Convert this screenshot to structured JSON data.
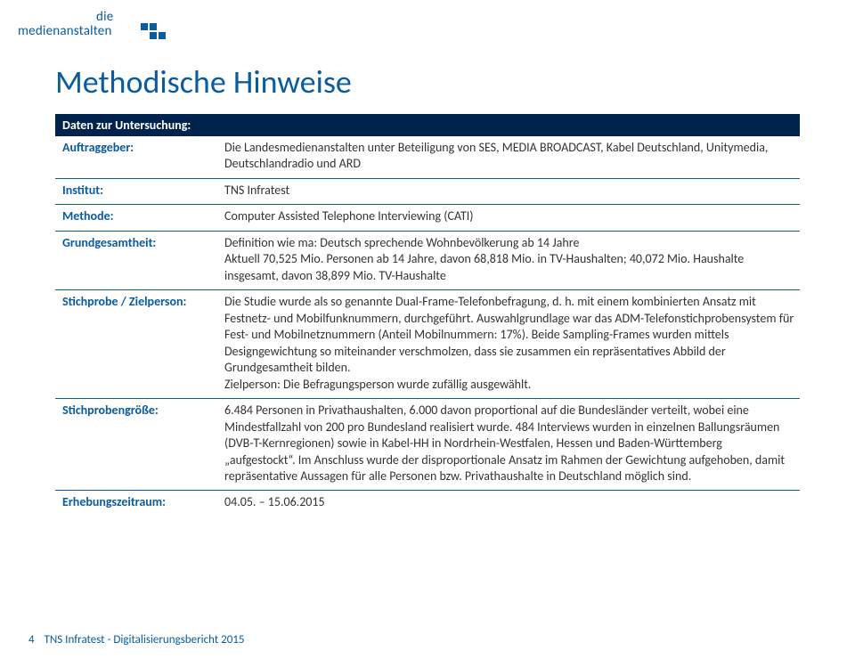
{
  "logo": {
    "line1": "die",
    "line2": "medienanstalten"
  },
  "title": "Methodische Hinweise",
  "colors": {
    "brand": "#0a5ca0",
    "tableHeaderBg": "#00234e",
    "tableHeaderFg": "#ffffff",
    "bodyText": "#333333",
    "ruleColor": "#0a5ca0",
    "pageBg": "#ffffff"
  },
  "table": {
    "header": "Daten zur Untersuchung:",
    "rows": [
      {
        "label": "Auftraggeber:",
        "value": "Die Landesmedienanstalten unter Beteiligung von SES, MEDIA BROADCAST, Kabel Deutschland, Unitymedia, Deutschlandradio und ARD"
      },
      {
        "label": "Institut:",
        "value": "TNS Infratest"
      },
      {
        "label": "Methode:",
        "value": "Computer Assisted Telephone Interviewing (CATI)"
      },
      {
        "label": "Grundgesamtheit:",
        "value": "Definition wie ma: Deutsch sprechende Wohnbevölkerung ab 14 Jahre\nAktuell 70,525 Mio. Personen ab 14 Jahre, davon 68,818 Mio. in TV-Haushalten; 40,072 Mio. Haushalte insgesamt, davon 38,899 Mio. TV-Haushalte"
      },
      {
        "label": "Stichprobe / Zielperson:",
        "value": "Die Studie wurde als so genannte Dual-Frame-Telefonbefragung, d. h. mit einem kombinierten Ansatz mit Festnetz- und Mobilfunknummern, durchgeführt. Auswahlgrundlage war das ADM-Telefonstichprobensystem für Fest- und Mobilnetznummern (Anteil Mobilnummern: 17%). Beide Sampling-Frames wurden mittels Designgewichtung so miteinander verschmolzen, dass sie zusammen ein repräsentatives Abbild der Grundgesamtheit bilden.\nZielperson: Die Befragungsperson wurde zufällig ausgewählt."
      },
      {
        "label": "Stichprobengröße:",
        "value": "6.484 Personen in Privathaushalten, 6.000 davon proportional auf die Bundesländer verteilt, wobei eine Mindestfallzahl von 200 pro Bundesland realisiert wurde. 484 Interviews wurden in einzelnen Ballungsräumen (DVB-T-Kernregionen) sowie in Kabel-HH in Nordrhein-Westfalen, Hessen und Baden-Württemberg „aufgestockt“. Im Anschluss wurde der disproportionale Ansatz im Rahmen der Gewichtung aufgehoben, damit repräsentative Aussagen für alle Personen bzw. Privathaushalte in Deutschland möglich sind."
      },
      {
        "label": "Erhebungszeitraum:",
        "value": "04.05. – 15.06.2015"
      }
    ]
  },
  "footer": {
    "page": "4",
    "text": "TNS Infratest - Digitalisierungsbericht 2015"
  }
}
